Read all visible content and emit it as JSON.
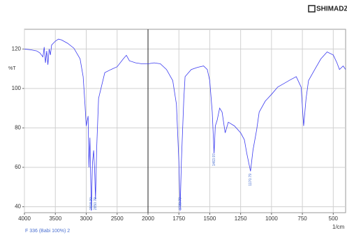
{
  "brand": "SHIMADZU",
  "footer": "F 336 (Babi 100%) 2",
  "chart_data": {
    "type": "line",
    "y_label": "%T",
    "x_unit": "1/cm",
    "color": "#3b3bf0",
    "grid": true,
    "xlim": [
      4000,
      400
    ],
    "x_scale_break": 2000,
    "xticks": [
      4000,
      3500,
      3000,
      2500,
      2000,
      1750,
      1500,
      1250,
      1000,
      750,
      500
    ],
    "ylim": [
      37,
      130
    ],
    "yticks": [
      40,
      60,
      80,
      100,
      120
    ],
    "x": [
      4000,
      3900,
      3800,
      3750,
      3700,
      3680,
      3660,
      3640,
      3620,
      3600,
      3580,
      3560,
      3500,
      3450,
      3400,
      3300,
      3200,
      3100,
      3050,
      3020,
      3000,
      2970,
      2956,
      2940,
      2918,
      2900,
      2880,
      2865,
      2850,
      2830,
      2800,
      2700,
      2600,
      2500,
      2400,
      2350,
      2300,
      2200,
      2100,
      2000,
      1950,
      1900,
      1850,
      1800,
      1770,
      1750,
      1740,
      1730,
      1710,
      1700,
      1650,
      1600,
      1550,
      1520,
      1500,
      1480,
      1465,
      1455,
      1440,
      1420,
      1400,
      1375,
      1350,
      1300,
      1250,
      1220,
      1200,
      1170,
      1150,
      1120,
      1100,
      1050,
      1000,
      950,
      900,
      850,
      800,
      760,
      740,
      720,
      700,
      650,
      600,
      550,
      500,
      470,
      450,
      420,
      400
    ],
    "values": [
      120,
      119.6,
      119,
      118,
      116,
      121,
      113,
      119,
      112,
      120,
      117,
      122,
      124,
      125,
      124.6,
      122.9,
      120.4,
      115,
      106,
      92,
      81,
      86,
      60,
      75,
      38,
      62,
      68.6,
      60,
      43.6,
      70,
      95,
      108,
      109.6,
      111,
      115,
      116.8,
      114,
      113,
      112.5,
      112.5,
      113,
      112.5,
      109.6,
      104,
      92,
      63,
      38,
      63,
      95,
      106,
      109.6,
      110.7,
      111.4,
      109.6,
      104,
      88,
      67,
      81,
      84,
      90,
      88,
      77.5,
      82.9,
      81,
      77.5,
      74,
      67,
      58,
      68.6,
      79,
      88,
      93.6,
      97,
      100.7,
      102.5,
      104.3,
      106,
      100.7,
      81,
      95,
      104,
      109.6,
      115,
      118.5,
      117,
      113,
      109.6,
      111.4,
      109.6
    ],
    "annotations": [
      {
        "x": 2918.3,
        "label": "2918.30"
      },
      {
        "x": 2850.79,
        "label": "2850.79"
      },
      {
        "x": 1739.79,
        "label": "1739.79"
      },
      {
        "x": 1463.97,
        "label": "1463.97"
      },
      {
        "x": 1170.79,
        "label": "1170.79"
      }
    ]
  }
}
